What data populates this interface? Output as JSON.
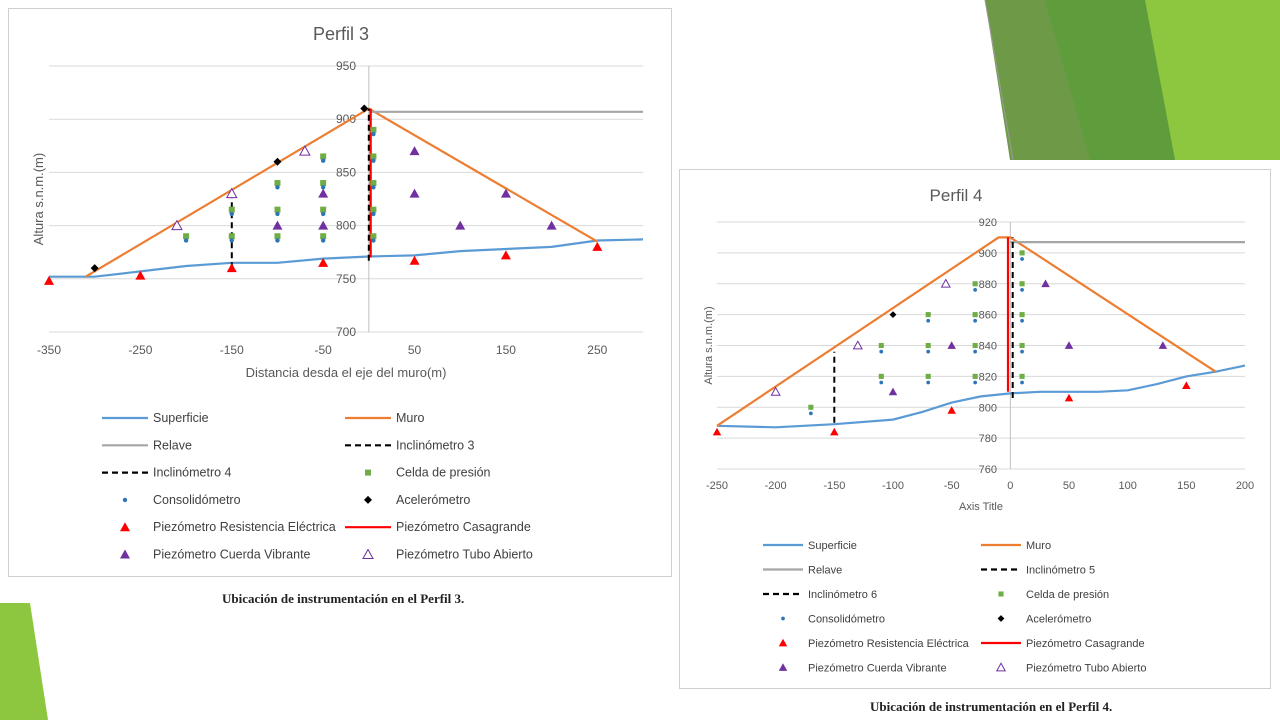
{
  "colors": {
    "superficie": "#5B9BD5",
    "muro": "#ED7D31",
    "relave": "#A5A5A5",
    "inclinometro": "#000000",
    "celda": "#70AD47",
    "consolidometro": "#2E75B6",
    "acelerometro": "#000000",
    "pz_electrica": "#FF0000",
    "pz_casagrande": "#FF0000",
    "pz_cuerda": "#7030A0",
    "pz_tubo": "#7030A0",
    "decor_green": "#8DC63F"
  },
  "captions": {
    "perfil3": "Ubicación de instrumentación en el Perfil 3.",
    "perfil4": "Ubicación de instrumentación en el Perfil 4."
  },
  "chart_data": [
    {
      "type": "scatter",
      "title": "Perfil 3",
      "xlabel": "Distancia desda el eje del muro(m)",
      "ylabel": "Altura s.n.m.(m)",
      "xlim": [
        -350,
        300
      ],
      "ylim": [
        700,
        950
      ],
      "xticks": [
        -350,
        -250,
        -150,
        -50,
        50,
        150,
        250
      ],
      "yticks": [
        700,
        750,
        800,
        850,
        900,
        950
      ],
      "grid": true,
      "legend_position": "bottom",
      "series": [
        {
          "name": "Superficie",
          "kind": "line",
          "color_key": "superficie",
          "points": [
            [
              -350,
              752
            ],
            [
              -300,
              752
            ],
            [
              -250,
              757
            ],
            [
              -200,
              762
            ],
            [
              -150,
              765
            ],
            [
              -100,
              765
            ],
            [
              -50,
              769
            ],
            [
              0,
              771
            ],
            [
              50,
              772
            ],
            [
              100,
              776
            ],
            [
              150,
              778
            ],
            [
              200,
              780
            ],
            [
              250,
              786
            ],
            [
              300,
              787
            ]
          ]
        },
        {
          "name": "Muro",
          "kind": "line",
          "color_key": "muro",
          "points": [
            [
              -310,
              752
            ],
            [
              0,
              910
            ],
            [
              250,
              785
            ]
          ]
        },
        {
          "name": "Relave",
          "kind": "line",
          "color_key": "relave",
          "points": [
            [
              0,
              907
            ],
            [
              300,
              907
            ]
          ]
        },
        {
          "name": "Inclinómetro 3",
          "kind": "dash",
          "color_key": "inclinometro",
          "points": [
            [
              -150,
              760
            ],
            [
              -150,
              835
            ]
          ]
        },
        {
          "name": "Inclinómetro 4",
          "kind": "dash",
          "color_key": "inclinometro",
          "points": [
            [
              0,
              767
            ],
            [
              0,
              910
            ]
          ]
        },
        {
          "name": "Celda de presión",
          "kind": "square",
          "color_key": "celda",
          "points": [
            [
              -200,
              790
            ],
            [
              -150,
              815
            ],
            [
              -150,
              790
            ],
            [
              -100,
              840
            ],
            [
              -100,
              815
            ],
            [
              -100,
              790
            ],
            [
              -50,
              865
            ],
            [
              -50,
              840
            ],
            [
              -50,
              815
            ],
            [
              -50,
              790
            ],
            [
              5,
              890
            ],
            [
              5,
              865
            ],
            [
              5,
              840
            ],
            [
              5,
              815
            ],
            [
              5,
              790
            ]
          ]
        },
        {
          "name": "Consolidómetro",
          "kind": "dot",
          "color_key": "consolidometro",
          "points": [
            [
              -200,
              786
            ],
            [
              -150,
              811
            ],
            [
              -150,
              786
            ],
            [
              -100,
              836
            ],
            [
              -100,
              811
            ],
            [
              -100,
              786
            ],
            [
              -50,
              861
            ],
            [
              -50,
              836
            ],
            [
              -50,
              811
            ],
            [
              -50,
              786
            ],
            [
              5,
              886
            ],
            [
              5,
              861
            ],
            [
              5,
              836
            ],
            [
              5,
              811
            ],
            [
              5,
              786
            ]
          ]
        },
        {
          "name": "Acelerómetro",
          "kind": "diamond",
          "color_key": "acelerometro",
          "points": [
            [
              -300,
              760
            ],
            [
              -100,
              860
            ],
            [
              -5,
              910
            ]
          ]
        },
        {
          "name": "Piezómetro Resistencia Eléctrica",
          "kind": "triangle",
          "color_key": "pz_electrica",
          "points": [
            [
              -350,
              748
            ],
            [
              -250,
              753
            ],
            [
              -150,
              760
            ],
            [
              -50,
              765
            ],
            [
              50,
              767
            ],
            [
              150,
              772
            ],
            [
              250,
              780
            ]
          ]
        },
        {
          "name": "Piezómetro Casagrande",
          "kind": "line",
          "color_key": "pz_casagrande",
          "points": [
            [
              2,
              770
            ],
            [
              2,
              910
            ]
          ]
        },
        {
          "name": "Piezómetro Cuerda Vibrante",
          "kind": "triangle",
          "color_key": "pz_cuerda",
          "points": [
            [
              -100,
              800
            ],
            [
              -50,
              830
            ],
            [
              -50,
              800
            ],
            [
              50,
              870
            ],
            [
              50,
              830
            ],
            [
              100,
              800
            ],
            [
              150,
              830
            ],
            [
              200,
              800
            ]
          ]
        },
        {
          "name": "Piezómetro Tubo Abierto",
          "kind": "triangle-open",
          "color_key": "pz_tubo",
          "points": [
            [
              -210,
              800
            ],
            [
              -150,
              830
            ],
            [
              -70,
              870
            ]
          ]
        }
      ]
    },
    {
      "type": "scatter",
      "title": "Perfil 4",
      "xlabel": "Axis Title",
      "ylabel": "Altura s.n.m.(m)",
      "xlim": [
        -250,
        200
      ],
      "ylim": [
        760,
        920
      ],
      "xticks": [
        -250,
        -200,
        -150,
        -100,
        -50,
        0,
        50,
        100,
        150,
        200
      ],
      "yticks": [
        760,
        780,
        800,
        820,
        840,
        860,
        880,
        900,
        920
      ],
      "grid": true,
      "legend_position": "bottom",
      "series": [
        {
          "name": "Superficie",
          "kind": "line",
          "color_key": "superficie",
          "points": [
            [
              -250,
              788
            ],
            [
              -200,
              787
            ],
            [
              -150,
              789
            ],
            [
              -100,
              792
            ],
            [
              -75,
              797
            ],
            [
              -50,
              803
            ],
            [
              -25,
              807
            ],
            [
              0,
              809
            ],
            [
              25,
              810
            ],
            [
              75,
              810
            ],
            [
              100,
              811
            ],
            [
              125,
              815
            ],
            [
              150,
              820
            ],
            [
              175,
              823
            ],
            [
              200,
              827
            ]
          ]
        },
        {
          "name": "Muro",
          "kind": "line",
          "color_key": "muro",
          "points": [
            [
              -250,
              788
            ],
            [
              -10,
              910
            ],
            [
              0,
              910
            ],
            [
              175,
              823
            ]
          ]
        },
        {
          "name": "Relave",
          "kind": "line",
          "color_key": "relave",
          "points": [
            [
              0,
              907
            ],
            [
              200,
              907
            ]
          ]
        },
        {
          "name": "Inclinómetro 5",
          "kind": "dash",
          "color_key": "inclinometro",
          "points": [
            [
              2,
              806
            ],
            [
              2,
              910
            ]
          ]
        },
        {
          "name": "Inclinómetro 6",
          "kind": "dash",
          "color_key": "inclinometro",
          "points": [
            [
              -150,
              790
            ],
            [
              -150,
              836
            ]
          ]
        },
        {
          "name": "Celda de presión",
          "kind": "square",
          "color_key": "celda",
          "points": [
            [
              -170,
              800
            ],
            [
              -110,
              840
            ],
            [
              -110,
              820
            ],
            [
              -70,
              860
            ],
            [
              -70,
              840
            ],
            [
              -70,
              820
            ],
            [
              -30,
              880
            ],
            [
              -30,
              860
            ],
            [
              -30,
              840
            ],
            [
              -30,
              820
            ],
            [
              10,
              900
            ],
            [
              10,
              880
            ],
            [
              10,
              860
            ],
            [
              10,
              840
            ],
            [
              10,
              820
            ]
          ]
        },
        {
          "name": "Consolidómetro",
          "kind": "dot",
          "color_key": "consolidometro",
          "points": [
            [
              -170,
              796
            ],
            [
              -110,
              836
            ],
            [
              -110,
              816
            ],
            [
              -70,
              856
            ],
            [
              -70,
              836
            ],
            [
              -70,
              816
            ],
            [
              -30,
              876
            ],
            [
              -30,
              856
            ],
            [
              -30,
              836
            ],
            [
              -30,
              816
            ],
            [
              10,
              896
            ],
            [
              10,
              876
            ],
            [
              10,
              856
            ],
            [
              10,
              836
            ],
            [
              10,
              816
            ]
          ]
        },
        {
          "name": "Acelerómetro",
          "kind": "diamond",
          "color_key": "acelerometro",
          "points": [
            [
              -100,
              860
            ]
          ]
        },
        {
          "name": "Piezómetro Resistencia Eléctrica",
          "kind": "triangle",
          "color_key": "pz_electrica",
          "points": [
            [
              -250,
              784
            ],
            [
              -150,
              784
            ],
            [
              -50,
              798
            ],
            [
              50,
              806
            ],
            [
              150,
              814
            ]
          ]
        },
        {
          "name": "Piezómetro Casagrande",
          "kind": "line",
          "color_key": "pz_casagrande",
          "points": [
            [
              -2,
              810
            ],
            [
              -2,
              910
            ]
          ]
        },
        {
          "name": "Piezómetro Cuerda Vibrante",
          "kind": "triangle",
          "color_key": "pz_cuerda",
          "points": [
            [
              -100,
              810
            ],
            [
              -50,
              840
            ],
            [
              30,
              880
            ],
            [
              50,
              840
            ],
            [
              130,
              840
            ]
          ]
        },
        {
          "name": "Piezómetro Tubo Abierto",
          "kind": "triangle-open",
          "color_key": "pz_tubo",
          "points": [
            [
              -200,
              810
            ],
            [
              -130,
              840
            ],
            [
              -55,
              880
            ]
          ]
        }
      ]
    }
  ]
}
